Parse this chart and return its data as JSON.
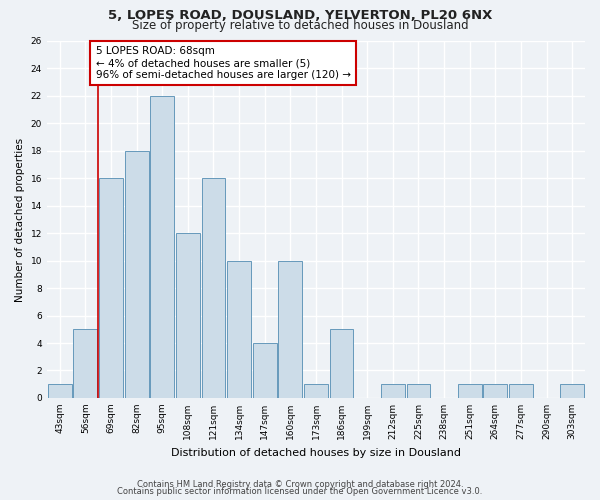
{
  "title1": "5, LOPES ROAD, DOUSLAND, YELVERTON, PL20 6NX",
  "title2": "Size of property relative to detached houses in Dousland",
  "xlabel": "Distribution of detached houses by size in Dousland",
  "ylabel": "Number of detached properties",
  "categories": [
    "43sqm",
    "56sqm",
    "69sqm",
    "82sqm",
    "95sqm",
    "108sqm",
    "121sqm",
    "134sqm",
    "147sqm",
    "160sqm",
    "173sqm",
    "186sqm",
    "199sqm",
    "212sqm",
    "225sqm",
    "238sqm",
    "251sqm",
    "264sqm",
    "277sqm",
    "290sqm",
    "303sqm"
  ],
  "values": [
    1,
    5,
    16,
    18,
    22,
    12,
    16,
    10,
    4,
    10,
    1,
    5,
    0,
    1,
    1,
    0,
    1,
    1,
    1,
    0,
    1
  ],
  "bar_color": "#ccdce8",
  "bar_edge_color": "#6699bb",
  "highlight_bar_index": 2,
  "highlight_line_color": "#cc0000",
  "annotation_text": "5 LOPES ROAD: 68sqm\n← 4% of detached houses are smaller (5)\n96% of semi-detached houses are larger (120) →",
  "annotation_box_color": "#ffffff",
  "annotation_box_edge_color": "#cc0000",
  "ylim": [
    0,
    26
  ],
  "yticks": [
    0,
    2,
    4,
    6,
    8,
    10,
    12,
    14,
    16,
    18,
    20,
    22,
    24,
    26
  ],
  "footer1": "Contains HM Land Registry data © Crown copyright and database right 2024.",
  "footer2": "Contains public sector information licensed under the Open Government Licence v3.0.",
  "background_color": "#eef2f6",
  "grid_color": "#ffffff",
  "title1_fontsize": 9.5,
  "title2_fontsize": 8.5,
  "xlabel_fontsize": 8,
  "ylabel_fontsize": 7.5,
  "tick_fontsize": 6.5,
  "annotation_fontsize": 7.5,
  "footer_fontsize": 6
}
